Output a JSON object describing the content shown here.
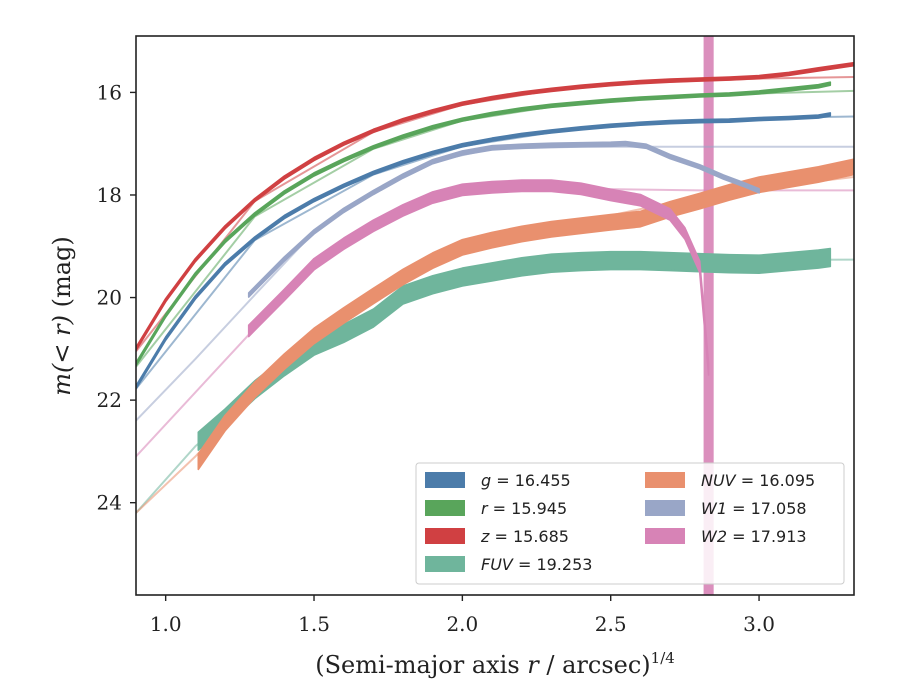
{
  "chart_data": {
    "type": "line",
    "title": "",
    "xlabel_main": "(Semi-major axis ",
    "xlabel_var": "r",
    "xlabel_rest": " / arcsec)",
    "xlabel_exp": "1/4",
    "ylabel_main": "m(< r)",
    "ylabel_unit": " (mag)",
    "xlim": [
      0.9,
      3.32
    ],
    "ylim": [
      25.8,
      14.9
    ],
    "y_inverted": true,
    "grid": false,
    "legend_position": "lower-right",
    "x_ticks": [
      1.0,
      1.5,
      2.0,
      2.5,
      3.0
    ],
    "x_tick_labels": [
      "1.0",
      "1.5",
      "2.0",
      "2.5",
      "3.0"
    ],
    "y_ticks": [
      16,
      18,
      20,
      22,
      24
    ],
    "y_tick_labels": [
      "16",
      "18",
      "20",
      "22",
      "24"
    ],
    "vertical_band": {
      "x": 2.83,
      "width": 0.034,
      "color": "#d783b6"
    },
    "series": [
      {
        "name": "g = 16.455",
        "label_var": "g",
        "label_val": " = 16.455",
        "color": "#4c7caa",
        "band_width_mag": 0.06,
        "points": [
          [
            0.9,
            21.75
          ],
          [
            1.0,
            20.8
          ],
          [
            1.1,
            20.0
          ],
          [
            1.2,
            19.35
          ],
          [
            1.3,
            18.85
          ],
          [
            1.4,
            18.43
          ],
          [
            1.5,
            18.1
          ],
          [
            1.6,
            17.82
          ],
          [
            1.7,
            17.57
          ],
          [
            1.8,
            17.36
          ],
          [
            1.9,
            17.18
          ],
          [
            2.0,
            17.03
          ],
          [
            2.1,
            16.92
          ],
          [
            2.2,
            16.83
          ],
          [
            2.3,
            16.76
          ],
          [
            2.4,
            16.7
          ],
          [
            2.5,
            16.65
          ],
          [
            2.6,
            16.61
          ],
          [
            2.7,
            16.58
          ],
          [
            2.8,
            16.56
          ],
          [
            2.9,
            16.55
          ],
          [
            3.0,
            16.52
          ],
          [
            3.1,
            16.5
          ],
          [
            3.2,
            16.47
          ],
          [
            3.24,
            16.43
          ]
        ],
        "model_points": [
          [
            0.9,
            21.78
          ],
          [
            1.3,
            18.88
          ],
          [
            1.7,
            17.6
          ],
          [
            2.0,
            17.05
          ],
          [
            2.3,
            16.78
          ],
          [
            2.6,
            16.6
          ],
          [
            3.0,
            16.5
          ],
          [
            3.32,
            16.47
          ]
        ]
      },
      {
        "name": "r = 15.945",
        "label_var": "r",
        "label_val": " = 15.945",
        "color": "#59a55b",
        "band_width_mag": 0.06,
        "points": [
          [
            0.9,
            21.3
          ],
          [
            1.0,
            20.35
          ],
          [
            1.1,
            19.55
          ],
          [
            1.2,
            18.9
          ],
          [
            1.3,
            18.38
          ],
          [
            1.4,
            17.95
          ],
          [
            1.5,
            17.6
          ],
          [
            1.6,
            17.32
          ],
          [
            1.7,
            17.07
          ],
          [
            1.8,
            16.86
          ],
          [
            1.9,
            16.68
          ],
          [
            2.0,
            16.53
          ],
          [
            2.1,
            16.42
          ],
          [
            2.2,
            16.33
          ],
          [
            2.3,
            16.26
          ],
          [
            2.4,
            16.21
          ],
          [
            2.5,
            16.16
          ],
          [
            2.6,
            16.12
          ],
          [
            2.7,
            16.09
          ],
          [
            2.8,
            16.06
          ],
          [
            2.9,
            16.04
          ],
          [
            3.0,
            16.0
          ],
          [
            3.1,
            15.94
          ],
          [
            3.2,
            15.88
          ],
          [
            3.24,
            15.83
          ]
        ],
        "model_points": [
          [
            0.9,
            21.35
          ],
          [
            1.3,
            18.42
          ],
          [
            1.7,
            17.1
          ],
          [
            2.0,
            16.55
          ],
          [
            2.3,
            16.28
          ],
          [
            2.6,
            16.12
          ],
          [
            3.0,
            16.02
          ],
          [
            3.32,
            15.97
          ]
        ]
      },
      {
        "name": "z = 15.685",
        "label_var": "z",
        "label_val": " = 15.685",
        "color": "#d04042",
        "band_width_mag": 0.06,
        "points": [
          [
            0.9,
            21.0
          ],
          [
            1.0,
            20.05
          ],
          [
            1.1,
            19.27
          ],
          [
            1.2,
            18.63
          ],
          [
            1.3,
            18.1
          ],
          [
            1.4,
            17.66
          ],
          [
            1.5,
            17.3
          ],
          [
            1.6,
            17.0
          ],
          [
            1.7,
            16.75
          ],
          [
            1.8,
            16.54
          ],
          [
            1.9,
            16.37
          ],
          [
            2.0,
            16.22
          ],
          [
            2.1,
            16.11
          ],
          [
            2.2,
            16.02
          ],
          [
            2.3,
            15.95
          ],
          [
            2.4,
            15.89
          ],
          [
            2.5,
            15.84
          ],
          [
            2.6,
            15.8
          ],
          [
            2.7,
            15.77
          ],
          [
            2.8,
            15.75
          ],
          [
            2.9,
            15.73
          ],
          [
            3.0,
            15.7
          ],
          [
            3.1,
            15.64
          ],
          [
            3.2,
            15.55
          ],
          [
            3.32,
            15.45
          ]
        ],
        "model_points": [
          [
            0.9,
            21.05
          ],
          [
            1.3,
            18.12
          ],
          [
            1.7,
            16.77
          ],
          [
            2.0,
            16.24
          ],
          [
            2.3,
            15.96
          ],
          [
            2.6,
            15.81
          ],
          [
            3.0,
            15.73
          ],
          [
            3.32,
            15.7
          ]
        ]
      },
      {
        "name": "FUV = 19.253",
        "label_var": "FUV",
        "label_val": " = 19.253",
        "color": "#6fb59c",
        "band_width_mag": 0.35,
        "points": [
          [
            1.11,
            22.8
          ],
          [
            1.2,
            22.35
          ],
          [
            1.3,
            21.8
          ],
          [
            1.4,
            21.35
          ],
          [
            1.5,
            20.95
          ],
          [
            1.6,
            20.7
          ],
          [
            1.7,
            20.4
          ],
          [
            1.8,
            19.95
          ],
          [
            1.9,
            19.75
          ],
          [
            2.0,
            19.6
          ],
          [
            2.1,
            19.5
          ],
          [
            2.2,
            19.4
          ],
          [
            2.3,
            19.33
          ],
          [
            2.4,
            19.3
          ],
          [
            2.5,
            19.28
          ],
          [
            2.6,
            19.28
          ],
          [
            2.7,
            19.3
          ],
          [
            2.8,
            19.32
          ],
          [
            2.9,
            19.34
          ],
          [
            3.0,
            19.35
          ],
          [
            3.1,
            19.3
          ],
          [
            3.2,
            19.25
          ],
          [
            3.24,
            19.22
          ]
        ],
        "model_points": [
          [
            0.9,
            24.2
          ],
          [
            1.1,
            22.9
          ],
          [
            1.3,
            21.9
          ],
          [
            1.5,
            21.0
          ],
          [
            1.7,
            20.35
          ],
          [
            1.9,
            19.85
          ],
          [
            2.1,
            19.5
          ],
          [
            2.4,
            19.32
          ],
          [
            2.8,
            19.27
          ],
          [
            3.32,
            19.26
          ]
        ]
      },
      {
        "name": "NUV = 16.095",
        "label_var": "NUV",
        "label_val": " = 16.095",
        "color": "#e9906e",
        "band_width_mag": 0.3,
        "points": [
          [
            1.11,
            23.2
          ],
          [
            1.2,
            22.45
          ],
          [
            1.3,
            21.8
          ],
          [
            1.4,
            21.25
          ],
          [
            1.5,
            20.75
          ],
          [
            1.6,
            20.35
          ],
          [
            1.7,
            19.97
          ],
          [
            1.8,
            19.6
          ],
          [
            1.9,
            19.28
          ],
          [
            2.0,
            19.02
          ],
          [
            2.1,
            18.88
          ],
          [
            2.2,
            18.76
          ],
          [
            2.3,
            18.67
          ],
          [
            2.4,
            18.6
          ],
          [
            2.5,
            18.53
          ],
          [
            2.6,
            18.47
          ],
          [
            2.7,
            18.28
          ],
          [
            2.8,
            18.12
          ],
          [
            2.9,
            17.95
          ],
          [
            3.0,
            17.8
          ],
          [
            3.1,
            17.7
          ],
          [
            3.2,
            17.6
          ],
          [
            3.32,
            17.45
          ]
        ],
        "model_points": [
          [
            0.9,
            24.2
          ],
          [
            1.1,
            23.1
          ],
          [
            1.3,
            21.85
          ],
          [
            1.5,
            20.75
          ],
          [
            1.7,
            19.95
          ],
          [
            1.9,
            19.35
          ],
          [
            2.1,
            18.95
          ],
          [
            2.3,
            18.65
          ],
          [
            2.5,
            18.4
          ],
          [
            2.7,
            18.15
          ],
          [
            2.9,
            17.95
          ],
          [
            3.1,
            17.8
          ],
          [
            3.32,
            17.65
          ]
        ]
      },
      {
        "name": "W1 = 17.058",
        "label_var": "W1",
        "label_val": " = 17.058",
        "color": "#99a6c7",
        "band_width_mag": 0.08,
        "points": [
          [
            1.28,
            19.95
          ],
          [
            1.4,
            19.25
          ],
          [
            1.5,
            18.72
          ],
          [
            1.6,
            18.3
          ],
          [
            1.7,
            17.95
          ],
          [
            1.8,
            17.63
          ],
          [
            1.9,
            17.35
          ],
          [
            2.0,
            17.18
          ],
          [
            2.1,
            17.08
          ],
          [
            2.2,
            17.05
          ],
          [
            2.3,
            17.03
          ],
          [
            2.4,
            17.02
          ],
          [
            2.5,
            17.01
          ],
          [
            2.55,
            17.0
          ],
          [
            2.62,
            17.05
          ],
          [
            2.7,
            17.25
          ],
          [
            2.8,
            17.45
          ],
          [
            2.88,
            17.65
          ],
          [
            2.95,
            17.8
          ],
          [
            3.0,
            17.92
          ]
        ],
        "model_points": [
          [
            0.9,
            22.4
          ],
          [
            1.1,
            21.2
          ],
          [
            1.3,
            19.95
          ],
          [
            1.5,
            18.72
          ],
          [
            1.7,
            17.95
          ],
          [
            1.9,
            17.35
          ],
          [
            2.1,
            17.1
          ],
          [
            2.4,
            17.06
          ],
          [
            2.8,
            17.06
          ],
          [
            3.32,
            17.06
          ]
        ]
      },
      {
        "name": "W2 = 17.913",
        "label_var": "W2",
        "label_val": " = 17.913",
        "color": "#d783b6",
        "band_width_mag": 0.22,
        "points": [
          [
            1.28,
            20.65
          ],
          [
            1.4,
            19.95
          ],
          [
            1.5,
            19.35
          ],
          [
            1.6,
            18.95
          ],
          [
            1.7,
            18.6
          ],
          [
            1.8,
            18.3
          ],
          [
            1.9,
            18.05
          ],
          [
            2.0,
            17.9
          ],
          [
            2.1,
            17.85
          ],
          [
            2.2,
            17.82
          ],
          [
            2.3,
            17.82
          ],
          [
            2.4,
            17.88
          ],
          [
            2.5,
            18.0
          ],
          [
            2.6,
            18.1
          ],
          [
            2.7,
            18.38
          ],
          [
            2.75,
            18.75
          ],
          [
            2.8,
            19.4
          ],
          [
            2.83,
            21.4
          ]
        ],
        "model_points": [
          [
            0.9,
            23.1
          ],
          [
            1.1,
            21.85
          ],
          [
            1.3,
            20.6
          ],
          [
            1.5,
            19.4
          ],
          [
            1.7,
            18.6
          ],
          [
            1.9,
            18.1
          ],
          [
            2.1,
            17.9
          ],
          [
            2.4,
            17.88
          ],
          [
            2.8,
            17.91
          ],
          [
            3.32,
            17.91
          ]
        ]
      }
    ]
  }
}
